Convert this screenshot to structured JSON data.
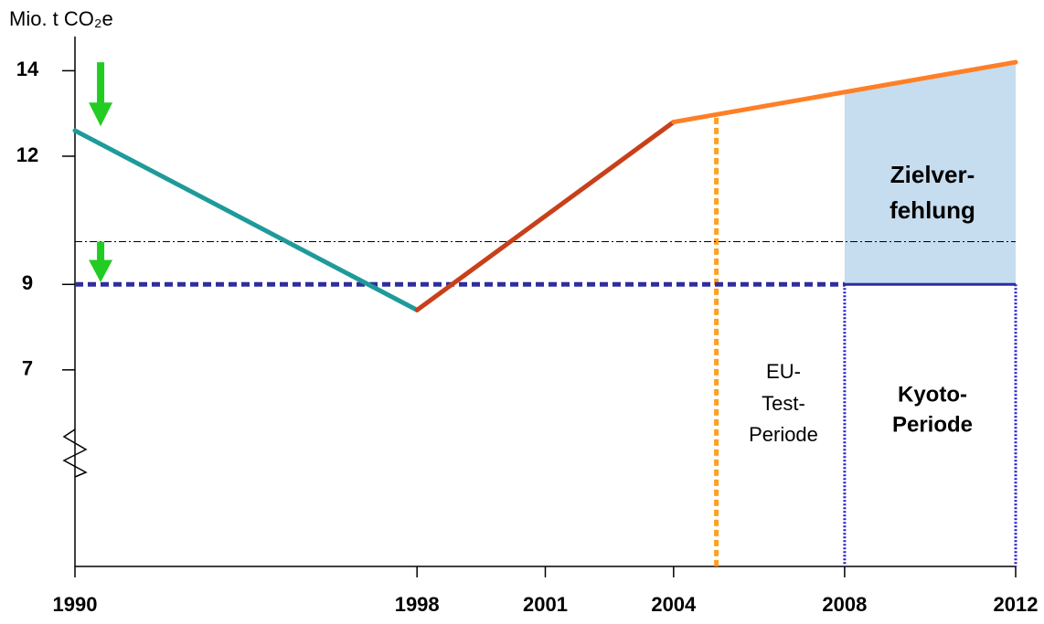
{
  "chart_data": {
    "type": "line",
    "y_label": "Mio. t CO₂e",
    "xlim": [
      1990,
      2012
    ],
    "ylim": [
      2.4,
      14.8
    ],
    "xticks": [
      1990,
      1998,
      2001,
      2004,
      2008,
      2012
    ],
    "yticks": [
      7,
      9,
      12,
      14
    ],
    "series": [
      {
        "color": "#1f9a9a",
        "x": [
          1990,
          1998
        ],
        "values": [
          12.6,
          8.4
        ]
      },
      {
        "color": "#c8401a",
        "x": [
          1998,
          2004
        ],
        "values": [
          8.4,
          12.8
        ]
      },
      {
        "color": "#ff7f27",
        "x": [
          2004,
          2012
        ],
        "values": [
          12.8,
          14.2
        ]
      }
    ],
    "reference_lines": [
      {
        "y": 9,
        "x": [
          1990,
          2008
        ],
        "style": "dashed",
        "color": "#2e2e9e"
      },
      {
        "y": 9,
        "x": [
          2008,
          2012
        ],
        "style": "solid",
        "color": "#2e2e9e"
      },
      {
        "y": 10,
        "x": [
          1990,
          2012
        ],
        "style": "dashdot",
        "color": "#000000"
      }
    ],
    "vertical_lines": [
      {
        "x": 2005,
        "top": 12.9,
        "color": "#ffa020"
      },
      {
        "x": 2008,
        "top": 9,
        "color": "#2020d0"
      },
      {
        "x": 2012,
        "top": 9,
        "color": "#2020d0"
      }
    ],
    "shade": {
      "x": [
        2008,
        2012
      ],
      "lower": 9,
      "upper": [
        13.5,
        14.2
      ],
      "color": "#c6dcef"
    },
    "arrows": [
      {
        "x": 1990.6,
        "from": 14.2,
        "to": 12.7,
        "color": "#22cc22"
      },
      {
        "x": 1990.6,
        "from": 10,
        "to": 9.05,
        "color": "#22cc22"
      }
    ],
    "annotations": [
      {
        "lines": [
          "Zielver-",
          "fehlung"
        ]
      },
      {
        "lines": [
          "EU-",
          "Test-",
          "Periode"
        ]
      },
      {
        "lines": [
          "Kyoto-",
          "Periode"
        ]
      }
    ]
  }
}
